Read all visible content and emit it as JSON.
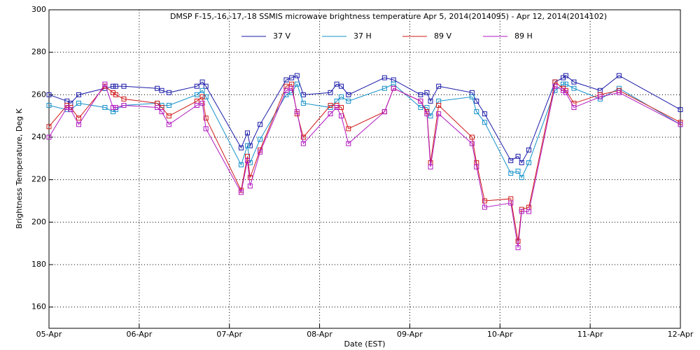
{
  "chart_data": {
    "type": "line",
    "title": "DMSP F-15,-16,-17,-18 SSMIS microwave brightness temperature Apr  5, 2014(2014095) - Apr 12, 2014(2014102)",
    "x_label": "Date (EST)",
    "y_label": "Brightness Temperature, Deg K",
    "x": [
      0,
      0.2,
      0.24,
      0.33,
      0.62,
      0.71,
      0.74,
      0.83,
      1.2,
      1.25,
      1.33,
      1.64,
      1.7,
      1.74,
      2.13,
      2.2,
      2.23,
      2.34,
      2.63,
      2.69,
      2.75,
      2.82,
      3.12,
      3.19,
      3.24,
      3.32,
      3.72,
      3.82,
      4.12,
      4.19,
      4.23,
      4.32,
      4.69,
      4.74,
      4.83,
      5.12,
      5.2,
      5.24,
      5.32,
      5.61,
      5.7,
      5.73,
      5.82,
      6.11,
      6.32,
      7.0
    ],
    "series": [
      {
        "name": "37 V",
        "color": "#1a1aa8",
        "values": [
          260,
          257,
          256,
          260,
          263,
          264,
          264,
          264,
          263,
          262,
          261,
          264,
          266,
          264,
          235,
          242,
          236,
          246,
          267,
          268,
          269,
          260,
          261,
          265,
          264,
          260,
          268,
          267,
          260,
          261,
          257,
          264,
          261,
          257,
          251,
          229,
          231,
          228,
          234,
          266,
          268,
          269,
          266,
          262,
          269,
          253
        ]
      },
      {
        "name": "37 H",
        "color": "#1590c8",
        "values": [
          255,
          253,
          253,
          256,
          254,
          252,
          253,
          255,
          256,
          255,
          255,
          260,
          262,
          259,
          227,
          236,
          228,
          239,
          260,
          261,
          265,
          256,
          254,
          257,
          259,
          257,
          263,
          265,
          254,
          254,
          250,
          257,
          259,
          252,
          247,
          223,
          224,
          221,
          228,
          262,
          265,
          265,
          263,
          258,
          263,
          246
        ]
      },
      {
        "name": "89 V",
        "color": "#d01818",
        "values": [
          245,
          255,
          254,
          249,
          264,
          261,
          260,
          258,
          256,
          254,
          250,
          257,
          259,
          249,
          215,
          231,
          221,
          234,
          264,
          265,
          251,
          240,
          255,
          255,
          254,
          244,
          252,
          263,
          257,
          252,
          228,
          255,
          240,
          228,
          210,
          211,
          191,
          206,
          207,
          266,
          263,
          262,
          256,
          260,
          262,
          247
        ]
      },
      {
        "name": "89 H",
        "color": "#b018c0",
        "values": [
          240,
          254,
          253,
          246,
          265,
          254,
          254,
          255,
          254,
          252,
          246,
          255,
          256,
          244,
          214,
          229,
          217,
          233,
          262,
          263,
          252,
          237,
          251,
          254,
          250,
          237,
          252,
          263,
          257,
          251,
          226,
          251,
          237,
          226,
          207,
          209,
          188,
          205,
          205,
          264,
          262,
          261,
          254,
          259,
          261,
          246
        ]
      }
    ],
    "xlim": [
      0,
      7
    ],
    "xticks": [
      {
        "value": 0,
        "label": "05-Apr"
      },
      {
        "value": 1,
        "label": "06-Apr"
      },
      {
        "value": 2,
        "label": "07-Apr"
      },
      {
        "value": 3,
        "label": "08-Apr"
      },
      {
        "value": 4,
        "label": "09-Apr"
      },
      {
        "value": 5,
        "label": "10-Apr"
      },
      {
        "value": 6,
        "label": "11-Apr"
      },
      {
        "value": 7,
        "label": "12-Apr"
      }
    ],
    "ylim": [
      150,
      300
    ],
    "yticks": [
      160,
      180,
      200,
      220,
      240,
      260,
      280,
      300
    ],
    "grid": true,
    "legend": "top"
  }
}
